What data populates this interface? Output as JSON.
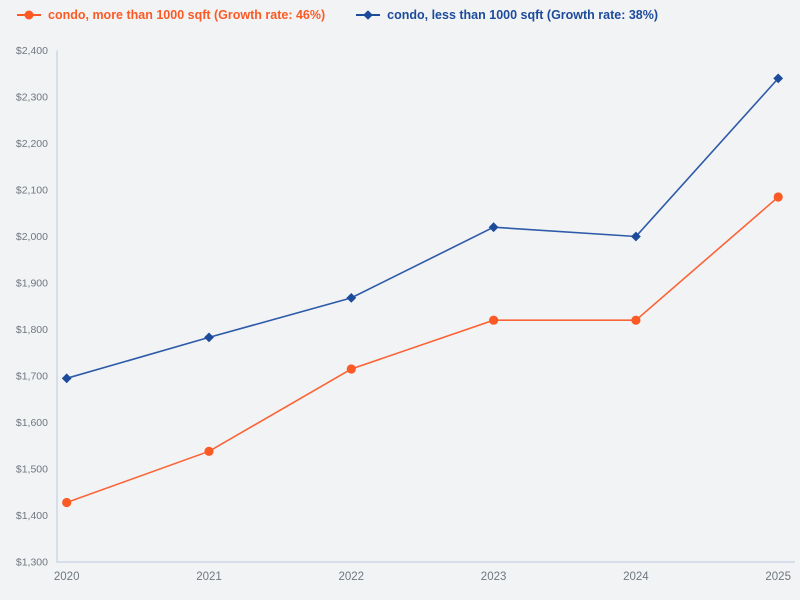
{
  "legend": {
    "series1_label": "condo, more than 1000 sqft (Growth rate: 46%)",
    "series2_label": "condo, less than 1000 sqft (Growth rate: 38%)"
  },
  "colors": {
    "background": "#f2f3f5",
    "axis_line": "#ccd6e8",
    "tick_text": "#6f7780",
    "series1_orange": "#fb5a25",
    "series2_blue": "#1d4b9b"
  },
  "chart_data": {
    "type": "line",
    "title": "",
    "xlabel": "",
    "ylabel": "",
    "grid": false,
    "legend_position": "top-left",
    "categories": [
      "2020",
      "2021",
      "2022",
      "2023",
      "2024",
      "2025"
    ],
    "series": [
      {
        "name": "condo, more than 1000 sqft",
        "growth_rate": "46%",
        "color": "#fb5a25",
        "line_color": "#fb6436",
        "marker": "circle",
        "values": [
          1428,
          1538,
          1715,
          1820,
          1820,
          2085
        ]
      },
      {
        "name": "condo, less than 1000 sqft",
        "growth_rate": "38%",
        "color": "#1d4b9b",
        "line_color": "#2d5aa9",
        "marker": "diamond",
        "values": [
          1695,
          1783,
          1868,
          2020,
          2000,
          2340
        ]
      }
    ],
    "ylim": [
      1300,
      2400
    ],
    "y_tick_step": 100,
    "y_ticks": [
      {
        "value": 2400,
        "label": "$2,400"
      },
      {
        "value": 2300,
        "label": "$2,300"
      },
      {
        "value": 2200,
        "label": "$2,200"
      },
      {
        "value": 2100,
        "label": "$2,100"
      },
      {
        "value": 2000,
        "label": "$2,000"
      },
      {
        "value": 1900,
        "label": "$1,900"
      },
      {
        "value": 1800,
        "label": "$1,800"
      },
      {
        "value": 1700,
        "label": "$1,700"
      },
      {
        "value": 1600,
        "label": "$1,600"
      },
      {
        "value": 1500,
        "label": "$1,500"
      },
      {
        "value": 1400,
        "label": "$1,400"
      },
      {
        "value": 1300,
        "label": "$1,300"
      }
    ]
  }
}
